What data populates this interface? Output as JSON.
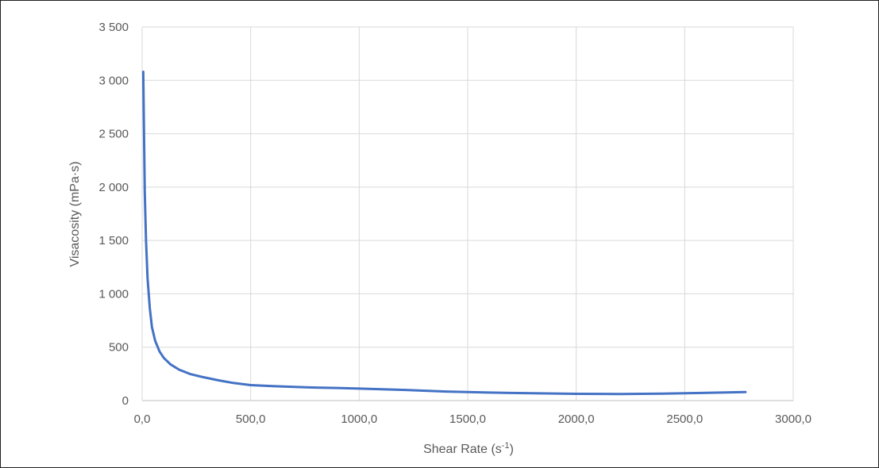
{
  "chart_data": {
    "type": "line",
    "title": "",
    "xlabel": "Shear Rate (s",
    "xlabel_sup": "-1",
    "xlabel_suffix": ")",
    "ylabel": "Visacosity (mPa·s)",
    "xlim": [
      0,
      3000
    ],
    "ylim": [
      0,
      3500
    ],
    "x_ticks": [
      0,
      500,
      1000,
      1500,
      2000,
      2500,
      3000
    ],
    "x_tick_labels": [
      "0,0",
      "500,0",
      "1000,0",
      "1500,0",
      "2000,0",
      "2500,0",
      "3000,0"
    ],
    "y_ticks": [
      0,
      500,
      1000,
      1500,
      2000,
      2500,
      3000,
      3500
    ],
    "y_tick_labels": [
      "0",
      "500",
      "1 000",
      "1 500",
      "2 000",
      "2 500",
      "3 000",
      "3 500"
    ],
    "grid": true,
    "legend": "none",
    "color": "#4472c4",
    "series": [
      {
        "x": [
          5,
          8,
          12,
          18,
          25,
          35,
          45,
          60,
          80,
          100,
          130,
          170,
          220,
          280,
          350,
          420,
          500,
          600,
          700,
          800,
          900,
          1000,
          1200,
          1400,
          1600,
          1800,
          2000,
          2200,
          2400,
          2600,
          2780
        ],
        "values": [
          3080,
          2600,
          1950,
          1500,
          1150,
          870,
          690,
          560,
          460,
          400,
          340,
          290,
          250,
          220,
          190,
          165,
          145,
          135,
          128,
          122,
          118,
          112,
          100,
          85,
          75,
          68,
          63,
          62,
          65,
          72,
          80
        ]
      }
    ]
  }
}
